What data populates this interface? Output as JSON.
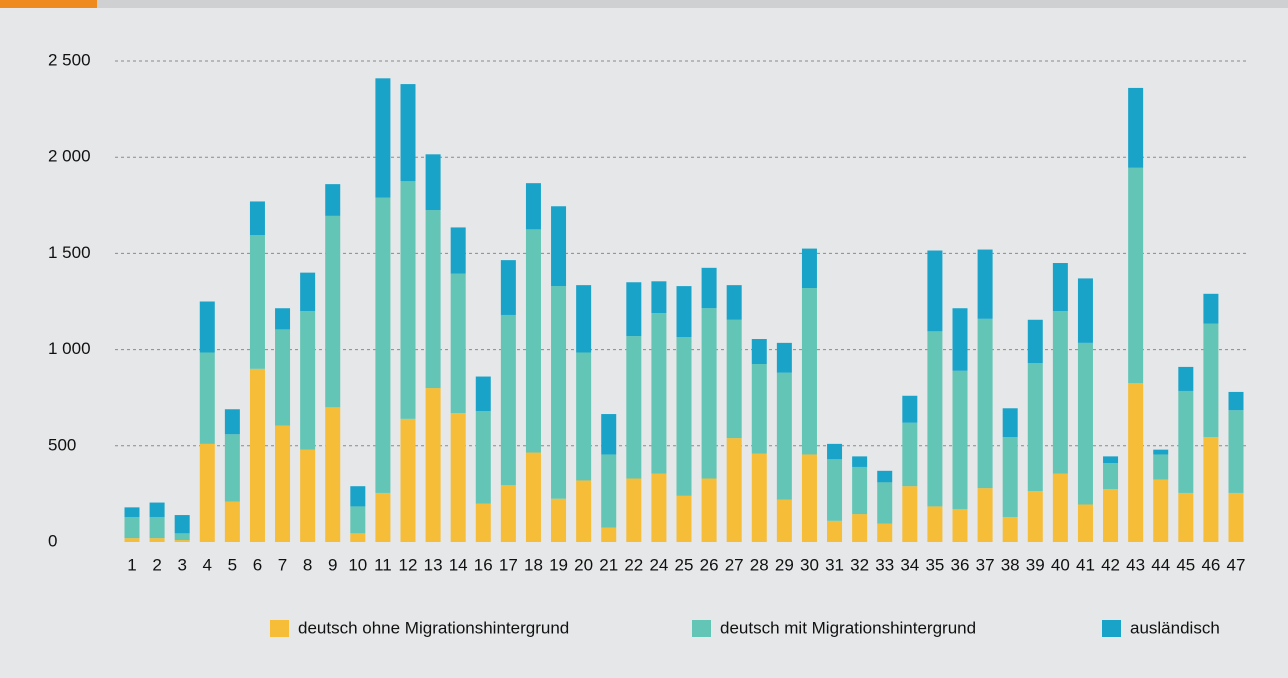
{
  "chart_data": {
    "type": "stacked-bar",
    "categories": [
      "1",
      "2",
      "3",
      "4",
      "5",
      "6",
      "7",
      "8",
      "9",
      "10",
      "11",
      "12",
      "13",
      "14",
      "16",
      "17",
      "18",
      "19",
      "20",
      "21",
      "22",
      "24",
      "25",
      "26",
      "27",
      "28",
      "29",
      "30",
      "31",
      "32",
      "33",
      "34",
      "35",
      "36",
      "37",
      "38",
      "39",
      "40",
      "41",
      "42",
      "43",
      "44",
      "45",
      "46",
      "47"
    ],
    "series": [
      {
        "name": "deutsch ohne Migrationshintergrund",
        "color": "#f5bd38",
        "values": [
          20,
          20,
          10,
          510,
          210,
          900,
          605,
          480,
          700,
          45,
          255,
          640,
          800,
          670,
          200,
          295,
          465,
          225,
          320,
          75,
          330,
          355,
          240,
          330,
          540,
          460,
          220,
          455,
          110,
          145,
          95,
          290,
          185,
          170,
          280,
          130,
          265,
          355,
          195,
          275,
          825,
          325,
          255,
          545,
          255
        ]
      },
      {
        "name": "deutsch mit Migrationshintergrund",
        "color": "#62c5b5",
        "values": [
          110,
          110,
          35,
          475,
          350,
          695,
          500,
          720,
          995,
          140,
          1535,
          1235,
          925,
          725,
          480,
          885,
          1160,
          1105,
          665,
          380,
          740,
          835,
          825,
          885,
          615,
          465,
          660,
          865,
          320,
          245,
          215,
          330,
          910,
          720,
          880,
          415,
          665,
          845,
          840,
          135,
          1120,
          130,
          530,
          590,
          430
        ]
      },
      {
        "name": "ausländisch",
        "color": "#1aa3c8",
        "values": [
          50,
          75,
          95,
          265,
          130,
          175,
          110,
          200,
          165,
          105,
          620,
          505,
          290,
          240,
          180,
          285,
          240,
          415,
          350,
          210,
          280,
          165,
          265,
          210,
          180,
          130,
          155,
          205,
          80,
          55,
          60,
          140,
          420,
          325,
          360,
          150,
          225,
          250,
          335,
          35,
          415,
          25,
          125,
          155,
          95
        ]
      }
    ],
    "ylim": [
      0,
      2500
    ],
    "yticks": [
      0,
      500,
      {
        "value": 1000,
        "label": "1 000"
      },
      {
        "value": 1500,
        "label": "1 500"
      },
      {
        "value": 2000,
        "label": "2 000"
      },
      {
        "value": 2500,
        "label": "2 500"
      }
    ],
    "grid": true,
    "legend": "bottom"
  }
}
